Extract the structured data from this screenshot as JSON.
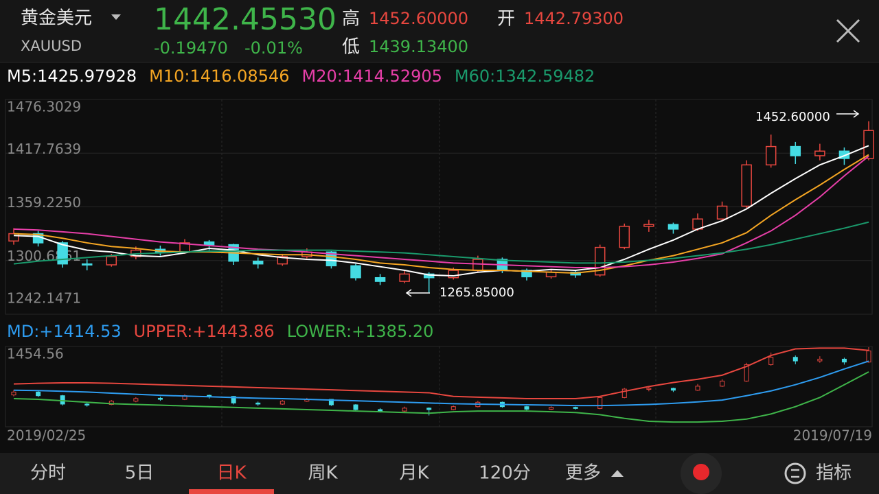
{
  "header": {
    "name": "黄金美元",
    "symbol": "XAUUSD",
    "price": "1442.45530",
    "change": "-0.19470",
    "change_pct": "-0.01%",
    "high_label": "高",
    "high": "1452.60000",
    "open_label": "开",
    "open": "1442.79300",
    "low_label": "低",
    "low": "1439.13400"
  },
  "tabs": [
    "分时",
    "5日",
    "日K",
    "周K",
    "月K",
    "120分",
    "更多",
    "指标"
  ],
  "chart_data": [
    {
      "type": "candlestick",
      "up_color": "#e8473f",
      "down_color": "#45dbe3",
      "grid": true,
      "categories": [
        "2019/02/25",
        null,
        null,
        null,
        null,
        null,
        null,
        null,
        null,
        null,
        null,
        null,
        null,
        null,
        null,
        null,
        null,
        null,
        null,
        null,
        null,
        null,
        null,
        null,
        null,
        null,
        null,
        null,
        null,
        null,
        null,
        null,
        null,
        null,
        null,
        "2019/07/19"
      ],
      "open": [
        1322,
        1330,
        1320,
        1297,
        1296,
        1305,
        1313,
        1310,
        1321,
        1318,
        1300,
        1297,
        1305,
        1310,
        1295,
        1282,
        1278,
        1286,
        1282,
        1290,
        1302,
        1290,
        1283,
        1288,
        1285,
        1315,
        1338,
        1340,
        1335,
        1346,
        1360,
        1405,
        1425,
        1415,
        1420,
        1412
      ],
      "high": [
        1336,
        1333,
        1322,
        1302,
        1308,
        1316,
        1317,
        1324,
        1323,
        1319,
        1304,
        1308,
        1314,
        1311,
        1297,
        1286,
        1290,
        1288,
        1293,
        1306,
        1304,
        1292,
        1291,
        1290,
        1318,
        1341,
        1345,
        1342,
        1352,
        1365,
        1410,
        1438,
        1430,
        1428,
        1424,
        1452.6
      ],
      "low": [
        1318,
        1316,
        1293,
        1290,
        1294,
        1302,
        1306,
        1308,
        1312,
        1296,
        1292,
        1295,
        1303,
        1292,
        1279,
        1274,
        1276,
        1265.85,
        1280,
        1288,
        1287,
        1279,
        1281,
        1282,
        1283,
        1313,
        1332,
        1330,
        1333,
        1344,
        1358,
        1402,
        1406,
        1410,
        1405,
        1410
      ],
      "close": [
        1330,
        1320,
        1297,
        1296,
        1305,
        1312,
        1310,
        1320,
        1318,
        1300,
        1297,
        1305,
        1310,
        1295,
        1282,
        1278,
        1286,
        1282,
        1290,
        1302,
        1290,
        1283,
        1288,
        1285,
        1315,
        1338,
        1340,
        1335,
        1346,
        1360,
        1405,
        1425,
        1415,
        1420,
        1412,
        1442.4553
      ],
      "series": [
        {
          "name": "M5:1425.97928",
          "color": "#ffffff",
          "values": [
            1328,
            1327,
            1318,
            1312,
            1310,
            1306,
            1305,
            1309,
            1314,
            1312,
            1307,
            1304,
            1302,
            1301,
            1298,
            1294,
            1290,
            1285,
            1284,
            1288,
            1290,
            1289,
            1291,
            1290,
            1293,
            1302,
            1313,
            1323,
            1335,
            1344,
            1357,
            1374,
            1390,
            1405,
            1415,
            1425.97928
          ]
        },
        {
          "name": "M10:1416.08546",
          "color": "#f5a623",
          "values": [
            1330,
            1329,
            1325,
            1320,
            1316,
            1314,
            1311,
            1310,
            1310,
            1309,
            1308,
            1307,
            1307,
            1305,
            1302,
            1298,
            1296,
            1293,
            1291,
            1290,
            1290,
            1289,
            1288,
            1287,
            1290,
            1295,
            1301,
            1306,
            1313,
            1320,
            1331,
            1350,
            1367,
            1383,
            1400,
            1416.08546
          ]
        },
        {
          "name": "M20:1414.52905",
          "color": "#e83fa9",
          "values": [
            1335,
            1334,
            1332,
            1330,
            1327,
            1324,
            1321,
            1319,
            1317,
            1315,
            1313,
            1312,
            1310,
            1308,
            1306,
            1304,
            1302,
            1300,
            1298,
            1297,
            1296,
            1295,
            1294,
            1293,
            1293,
            1294,
            1296,
            1299,
            1303,
            1308,
            1320,
            1333,
            1350,
            1370,
            1393,
            1414.52905
          ]
        },
        {
          "name": "M60:1342.59482",
          "color": "#1a9a6c",
          "values": [
            1297,
            1300,
            1302,
            1304,
            1306,
            1308,
            1309,
            1310,
            1311,
            1311,
            1312,
            1312,
            1312,
            1312,
            1311,
            1310,
            1309,
            1307,
            1305,
            1303,
            1301,
            1300,
            1299,
            1298,
            1298,
            1299,
            1301,
            1303,
            1306,
            1309,
            1313,
            1318,
            1324,
            1330,
            1336,
            1342.59482
          ]
        }
      ],
      "ylim": [
        1242.1471,
        1476.3029
      ],
      "yticks": [
        1476.3029,
        1417.7639,
        {
          "value": 1359.225,
          "label": "1359.2250"
        },
        1300.6861,
        1242.1471
      ],
      "annotations": [
        {
          "text": "1452.60000"
        },
        {
          "text": "1265.85000"
        }
      ]
    },
    {
      "type": "line",
      "series": [
        {
          "name": "MD:+1414.53",
          "color": "#2e9cf0",
          "values": [
            1335,
            1334,
            1332,
            1330,
            1327,
            1324,
            1321,
            1319,
            1317,
            1315,
            1313,
            1312,
            1310,
            1308,
            1306,
            1304,
            1302,
            1300,
            1298,
            1297,
            1296,
            1295,
            1294,
            1293,
            1293,
            1294,
            1296,
            1299,
            1303,
            1308,
            1320,
            1333,
            1350,
            1370,
            1393,
            1414.53
          ]
        },
        {
          "name": "UPPER:+1443.86",
          "color": "#e8473f",
          "values": [
            1352,
            1354,
            1355,
            1355,
            1354,
            1352,
            1350,
            1348,
            1346,
            1344,
            1342,
            1340,
            1338,
            1336,
            1334,
            1332,
            1330,
            1328,
            1318,
            1316,
            1314,
            1312,
            1312,
            1312,
            1318,
            1332,
            1345,
            1356,
            1365,
            1376,
            1400,
            1430,
            1448,
            1450,
            1450,
            1443.86
          ]
        },
        {
          "name": "LOWER:+1385.20",
          "color": "#3fb54a",
          "values": [
            1312,
            1310,
            1306,
            1302,
            1298,
            1296,
            1294,
            1292,
            1290,
            1288,
            1286,
            1284,
            1282,
            1280,
            1278,
            1276,
            1274,
            1272,
            1276,
            1278,
            1278,
            1278,
            1276,
            1274,
            1268,
            1258,
            1250,
            1248,
            1248,
            1250,
            1256,
            1270,
            1290,
            1315,
            1350,
            1385.2
          ]
        }
      ],
      "ylim": [
        1235,
        1454.56
      ],
      "yticks": [
        1454.56
      ]
    }
  ]
}
